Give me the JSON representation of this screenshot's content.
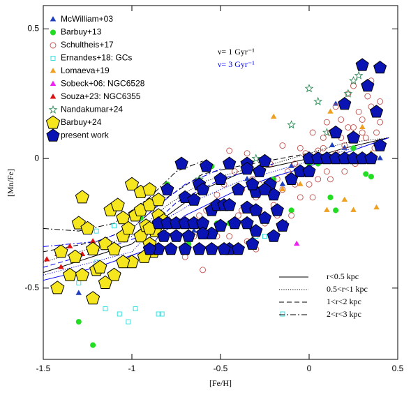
{
  "chart_data": {
    "type": "scatter",
    "x_label": "[Fe/H]",
    "y_label": "[Mn/Fe]",
    "xlim": [
      -1.5,
      0.5
    ],
    "ylim": [
      -0.775,
      0.59
    ],
    "xticks": [
      -1.5,
      -1,
      -0.5,
      0,
      0.5
    ],
    "yticks": [
      -0.5,
      0,
      0.5
    ],
    "annotations": [
      {
        "text": "ν= 1 Gyr⁻¹",
        "color": "#000000"
      },
      {
        "text": "ν= 3 Gyr⁻¹",
        "color": "#0000ff"
      }
    ],
    "series": [
      {
        "name": "McWilliam+03",
        "color": "#1f3fbf",
        "marker": "triangle",
        "filled": true,
        "x": [
          -1.3,
          -0.25,
          -0.15,
          -0.1,
          -0.13,
          -0.35,
          0.13,
          0.2,
          0.15,
          0.4,
          -0.65,
          -0.85
        ],
        "y": [
          -0.52,
          0.0,
          -0.1,
          -0.03,
          -0.25,
          -0.08,
          0.05,
          0.04,
          0.21,
          0.0,
          -0.28,
          -0.35
        ]
      },
      {
        "name": "Barbuy+13",
        "color": "#22dd22",
        "marker": "circle",
        "filled": true,
        "x": [
          -1.22,
          -1.3,
          -0.95,
          -0.8,
          -0.68,
          -0.62,
          -0.55,
          -0.52,
          -0.3,
          -0.2,
          0.0,
          0.05,
          0.12,
          0.15,
          0.2,
          0.25,
          0.32,
          0.35,
          -0.1,
          -0.45
        ],
        "y": [
          -0.72,
          -0.63,
          -0.23,
          -0.1,
          -0.33,
          -0.1,
          -0.03,
          -0.25,
          -0.05,
          -0.08,
          -0.02,
          -0.02,
          -0.15,
          -0.2,
          0.2,
          0.04,
          -0.06,
          -0.07,
          -0.2,
          -0.25
        ]
      },
      {
        "name": "Schultheis+17",
        "color": "#c0504d",
        "marker": "circle",
        "filled": false,
        "x": [
          -0.6,
          -0.55,
          -0.5,
          -0.45,
          -0.4,
          -0.35,
          -0.3,
          -0.25,
          -0.2,
          -0.15,
          -0.1,
          -0.05,
          0.0,
          0.05,
          0.1,
          0.15,
          0.2,
          0.25,
          0.3,
          0.35,
          0.4,
          0.38,
          0.32,
          0.28,
          0.22,
          0.18,
          0.12,
          0.08,
          0.05,
          -0.02,
          -0.08,
          -0.12,
          -0.18,
          -0.22,
          -0.28,
          -0.32,
          -0.38,
          -0.42,
          -0.48,
          -0.52,
          -0.58,
          -0.62,
          -0.65,
          -0.7,
          -0.45,
          -0.35,
          -0.15,
          -0.05,
          0.02,
          0.1,
          0.15,
          0.25,
          0.35,
          0.3,
          0.4,
          0.37,
          0.26,
          0.2,
          0.12,
          0.02,
          -0.08,
          -0.18,
          -0.28,
          -0.38,
          -0.52,
          -0.3,
          0.22,
          0.33,
          0.18,
          0.08
        ],
        "y": [
          -0.43,
          -0.3,
          -0.25,
          -0.3,
          -0.22,
          -0.32,
          -0.15,
          -0.25,
          -0.18,
          -0.12,
          -0.22,
          -0.15,
          -0.1,
          -0.08,
          -0.05,
          0.02,
          0.05,
          0.12,
          0.15,
          0.2,
          0.22,
          0.1,
          0.08,
          0.18,
          0.25,
          0.15,
          0.1,
          0.08,
          0.03,
          0.02,
          -0.02,
          -0.05,
          -0.08,
          -0.02,
          -0.1,
          -0.08,
          -0.12,
          -0.05,
          -0.1,
          -0.14,
          -0.2,
          -0.22,
          -0.3,
          -0.38,
          0.03,
          0.02,
          0.05,
          0.04,
          0.1,
          0.14,
          0.2,
          0.28,
          0.3,
          0.1,
          0.14,
          0.04,
          -0.02,
          -0.05,
          -0.08,
          -0.15,
          -0.1,
          -0.22,
          -0.2,
          -0.2,
          -0.3,
          -0.35,
          0.12,
          0.24,
          0.08,
          0.04
        ]
      },
      {
        "name": "Ernandes+18: GCs",
        "color": "#22dddd",
        "marker": "square",
        "filled": false,
        "x": [
          -1.3,
          -1.2,
          -1.1,
          -1.15,
          -1.07,
          -1.02,
          -0.98,
          -0.85,
          -0.83,
          -0.2,
          -0.25,
          -0.3,
          -0.15,
          -1.2
        ],
        "y": [
          -0.48,
          -0.28,
          -0.26,
          -0.58,
          -0.6,
          -0.63,
          -0.58,
          -0.6,
          -0.6,
          -0.3,
          -0.3,
          -0.3,
          -0.6,
          -0.4
        ]
      },
      {
        "name": "Lomaeva+19",
        "color": "#f0a020",
        "marker": "triangle",
        "filled": true,
        "x": [
          -0.2,
          -0.05,
          0.1,
          0.2,
          0.25,
          0.38,
          0.35,
          0.3,
          0.12,
          -0.15
        ],
        "y": [
          0.16,
          -0.1,
          -0.2,
          -0.16,
          -0.2,
          -0.19,
          0.02,
          0.12,
          0.18,
          -0.12
        ]
      },
      {
        "name": "Sobeck+06: NGC6528",
        "color": "#ee22ee",
        "marker": "triangle",
        "filled": true,
        "x": [
          -0.07
        ],
        "y": [
          -0.33
        ]
      },
      {
        "name": "Souza+23: NGC6355",
        "color": "#dd1111",
        "marker": "triangle",
        "filled": true,
        "x": [
          -1.48,
          -1.42,
          -1.35,
          -1.28,
          -1.22,
          -1.4
        ],
        "y": [
          -0.39,
          -0.37,
          -0.34,
          -0.37,
          -0.32,
          -0.42
        ]
      },
      {
        "name": "Nandakumar+24",
        "color": "#2e8b57",
        "marker": "star",
        "filled": false,
        "x": [
          -0.3,
          -0.62,
          -0.1,
          0.0,
          0.05,
          0.28,
          0.3,
          0.22,
          0.25,
          0.1
        ],
        "y": [
          0.0,
          -0.08,
          0.13,
          0.27,
          0.22,
          0.32,
          0.36,
          0.25,
          0.3,
          0.1
        ]
      },
      {
        "name": "Barbuy+24",
        "color": "#f5e61e",
        "marker": "pentagon",
        "filled": true,
        "x": [
          -1.42,
          -1.35,
          -1.28,
          -1.32,
          -1.3,
          -1.25,
          -1.28,
          -1.22,
          -1.2,
          -1.22,
          -1.15,
          -1.12,
          -1.1,
          -1.08,
          -1.05,
          -1.05,
          -1.0,
          -1.0,
          -0.98,
          -0.95,
          -0.95,
          -0.92,
          -0.9,
          -0.88,
          -0.9,
          -0.87,
          -0.85,
          -0.85,
          -0.82,
          -1.1,
          -1.05,
          -0.95,
          -0.9,
          -0.93,
          -1.02,
          -1.15,
          -1.4,
          -1.18,
          -0.9
        ],
        "y": [
          -0.5,
          -0.45,
          -0.45,
          -0.38,
          -0.25,
          -0.27,
          -0.15,
          -0.35,
          -0.43,
          -0.54,
          -0.33,
          -0.2,
          -0.35,
          -0.18,
          -0.23,
          -0.3,
          -0.4,
          -0.1,
          -0.22,
          -0.2,
          -0.3,
          -0.26,
          -0.33,
          -0.36,
          -0.18,
          -0.28,
          -0.22,
          -0.16,
          -0.24,
          -0.45,
          -0.4,
          -0.13,
          -0.12,
          -0.38,
          -0.27,
          -0.48,
          -0.36,
          -0.42,
          -0.27
        ]
      },
      {
        "name": "present work",
        "color": "#0a14b4",
        "marker": "pentagon",
        "filled": true,
        "x": [
          -0.72,
          -0.58,
          -0.62,
          -0.5,
          -0.45,
          -0.35,
          -0.28,
          -0.25,
          -0.22,
          -0.3,
          -0.2,
          -0.1,
          -0.05,
          0.0,
          0.05,
          0.1,
          0.15,
          0.2,
          0.25,
          0.3,
          0.35,
          0.0,
          0.15,
          0.2,
          0.3,
          0.33,
          0.4,
          0.38,
          0.4,
          0.25,
          -0.85,
          -0.8,
          -0.75,
          -0.7,
          -0.65,
          -0.6,
          -0.55,
          -0.52,
          -0.48,
          -0.45,
          -0.42,
          -0.35,
          -0.3,
          -0.25,
          -0.18,
          -0.15,
          -0.3,
          -0.35,
          -0.2,
          -0.55,
          -0.6,
          -0.68,
          -0.82,
          -0.75,
          -0.85,
          -0.78,
          -0.7,
          -0.62,
          -0.55,
          -0.45,
          -0.4,
          -0.9,
          -0.5,
          -0.48,
          -0.32,
          -0.8,
          -0.7,
          -0.65,
          -0.6,
          -0.4,
          -0.32,
          -0.25,
          -0.35
        ],
        "y": [
          -0.02,
          -0.03,
          -0.1,
          -0.08,
          -0.02,
          -0.02,
          -0.05,
          -0.01,
          -0.1,
          -0.13,
          -0.14,
          -0.08,
          -0.05,
          0.0,
          0.0,
          0.0,
          0.0,
          0.0,
          0.0,
          0.0,
          0.0,
          -0.05,
          0.1,
          0.21,
          0.36,
          0.28,
          0.35,
          0.18,
          0.05,
          0.08,
          -0.25,
          -0.25,
          -0.25,
          -0.25,
          -0.25,
          -0.25,
          -0.2,
          -0.18,
          -0.18,
          -0.18,
          -0.25,
          -0.19,
          -0.2,
          -0.23,
          -0.2,
          -0.26,
          -0.28,
          -0.25,
          -0.3,
          -0.29,
          -0.29,
          -0.3,
          -0.3,
          -0.3,
          -0.35,
          -0.35,
          -0.35,
          -0.35,
          -0.35,
          -0.35,
          -0.35,
          -0.35,
          -0.26,
          -0.35,
          -0.33,
          -0.12,
          -0.15,
          -0.16,
          -0.12,
          -0.12,
          -0.1,
          -0.12,
          -0.04
        ]
      }
    ],
    "models": [
      {
        "name": "r<0.5 kpc",
        "dash": "solid",
        "curves": [
          {
            "color": "#000000",
            "x": [
              -1.5,
              -1.0,
              -0.8,
              -0.6,
              -0.4,
              -0.2,
              0.0,
              0.2,
              0.45
            ],
            "y": [
              -0.44,
              -0.33,
              -0.22,
              -0.12,
              -0.06,
              -0.03,
              0.0,
              0.04,
              0.08
            ]
          },
          {
            "color": "#0000ff",
            "x": [
              -1.5,
              -1.2,
              -0.9,
              -0.85,
              -0.7,
              -0.4,
              -0.2,
              0.0,
              0.2,
              0.45
            ],
            "y": [
              -0.47,
              -0.42,
              -0.35,
              -0.3,
              -0.22,
              -0.12,
              -0.07,
              -0.03,
              0.02,
              0.08
            ]
          }
        ]
      },
      {
        "name": "0.5<r<1 kpc",
        "dash": "dotted",
        "curves": [
          {
            "color": "#000000",
            "x": [
              -1.5,
              -1.0,
              -0.8,
              -0.6,
              -0.4,
              -0.2,
              0.0,
              0.2,
              0.45
            ],
            "y": [
              -0.4,
              -0.3,
              -0.18,
              -0.09,
              -0.05,
              -0.02,
              0.02,
              0.06,
              0.08
            ]
          },
          {
            "color": "#0000ff",
            "x": [
              -1.5,
              -1.0,
              -0.85,
              -0.6,
              -0.4,
              0.0,
              0.3
            ],
            "y": [
              -0.45,
              -0.36,
              -0.25,
              -0.15,
              -0.09,
              -0.01,
              0.05
            ]
          }
        ]
      },
      {
        "name": "1<r<2 kpc",
        "dash": "dashed",
        "curves": [
          {
            "color": "#000000",
            "x": [
              -1.5,
              -1.2,
              -1.0,
              -0.8,
              -0.6,
              -0.4,
              0.0
            ],
            "y": [
              -0.36,
              -0.32,
              -0.27,
              -0.15,
              -0.06,
              -0.03,
              0.02
            ]
          },
          {
            "color": "#0000ff",
            "x": [
              -1.5,
              -1.2,
              -0.95,
              -0.75,
              -0.5,
              -0.2
            ],
            "y": [
              -0.42,
              -0.36,
              -0.3,
              -0.17,
              -0.08,
              -0.02
            ]
          }
        ]
      },
      {
        "name": "2<r<3 kpc",
        "dash": "dashdot",
        "curves": [
          {
            "color": "#000000",
            "x": [
              -1.5,
              -1.3,
              -1.1,
              -0.9,
              -0.75,
              -0.6
            ],
            "y": [
              -0.27,
              -0.28,
              -0.25,
              -0.15,
              -0.05,
              -0.01
            ]
          },
          {
            "color": "#0000ff",
            "x": [
              -1.5,
              -1.2,
              -1.0,
              -0.85,
              -0.7,
              -0.5
            ],
            "y": [
              -0.34,
              -0.32,
              -0.27,
              -0.18,
              -0.1,
              -0.04
            ]
          }
        ]
      }
    ]
  }
}
